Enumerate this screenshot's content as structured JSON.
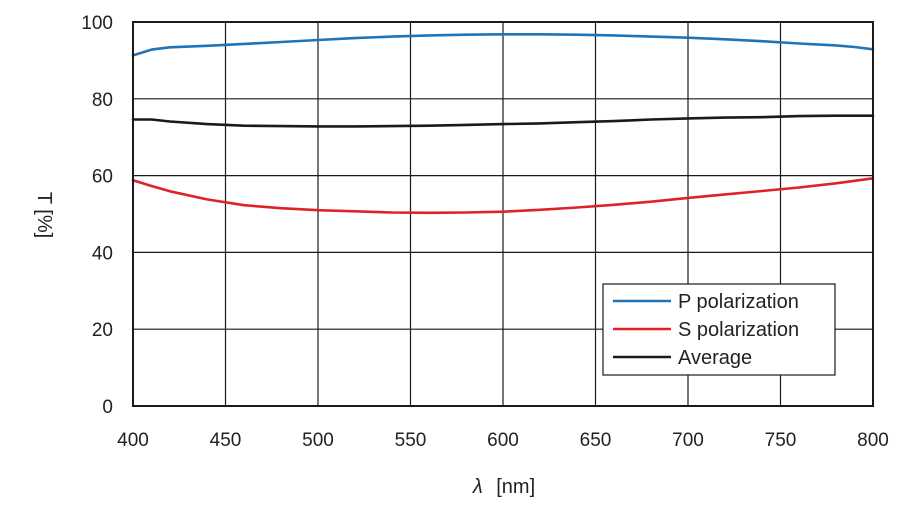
{
  "chart_data": {
    "type": "line",
    "xlabel_symbol": "λ",
    "xlabel_unit": "[nm]",
    "ylabel": "T [%]",
    "xlim": [
      400,
      800
    ],
    "ylim": [
      0,
      100
    ],
    "x_ticks": [
      400,
      450,
      500,
      550,
      600,
      650,
      700,
      750,
      800
    ],
    "y_ticks": [
      0,
      20,
      40,
      60,
      80,
      100
    ],
    "grid": true,
    "legend_position": "bottom-right",
    "series": [
      {
        "name": "P polarization",
        "color": "#1f74b8",
        "x": [
          400,
          410,
          420,
          440,
          460,
          480,
          500,
          520,
          540,
          560,
          580,
          600,
          620,
          640,
          660,
          680,
          700,
          720,
          740,
          760,
          780,
          790,
          800
        ],
        "values": [
          91.3,
          92.8,
          93.4,
          93.8,
          94.3,
          94.8,
          95.3,
          95.8,
          96.2,
          96.5,
          96.7,
          96.8,
          96.8,
          96.7,
          96.5,
          96.2,
          95.9,
          95.5,
          95.0,
          94.4,
          93.9,
          93.5,
          92.9
        ]
      },
      {
        "name": "S polarization",
        "color": "#e02228",
        "x": [
          400,
          410,
          420,
          440,
          460,
          480,
          500,
          520,
          540,
          560,
          580,
          600,
          620,
          640,
          660,
          680,
          700,
          720,
          740,
          760,
          780,
          800
        ],
        "values": [
          58.8,
          57.3,
          55.9,
          53.8,
          52.3,
          51.5,
          51.0,
          50.7,
          50.4,
          50.3,
          50.4,
          50.6,
          51.1,
          51.7,
          52.4,
          53.2,
          54.2,
          55.1,
          56.0,
          56.9,
          58.0,
          59.3
        ]
      },
      {
        "name": "Average",
        "color": "#1a1a1a",
        "x": [
          400,
          410,
          420,
          440,
          460,
          480,
          500,
          520,
          540,
          560,
          580,
          600,
          620,
          640,
          660,
          680,
          700,
          720,
          740,
          760,
          780,
          800
        ],
        "values": [
          74.6,
          74.6,
          74.1,
          73.4,
          73.0,
          72.9,
          72.8,
          72.8,
          72.9,
          73.0,
          73.2,
          73.4,
          73.6,
          73.9,
          74.2,
          74.6,
          74.9,
          75.1,
          75.2,
          75.5,
          75.6,
          75.6
        ]
      }
    ]
  }
}
